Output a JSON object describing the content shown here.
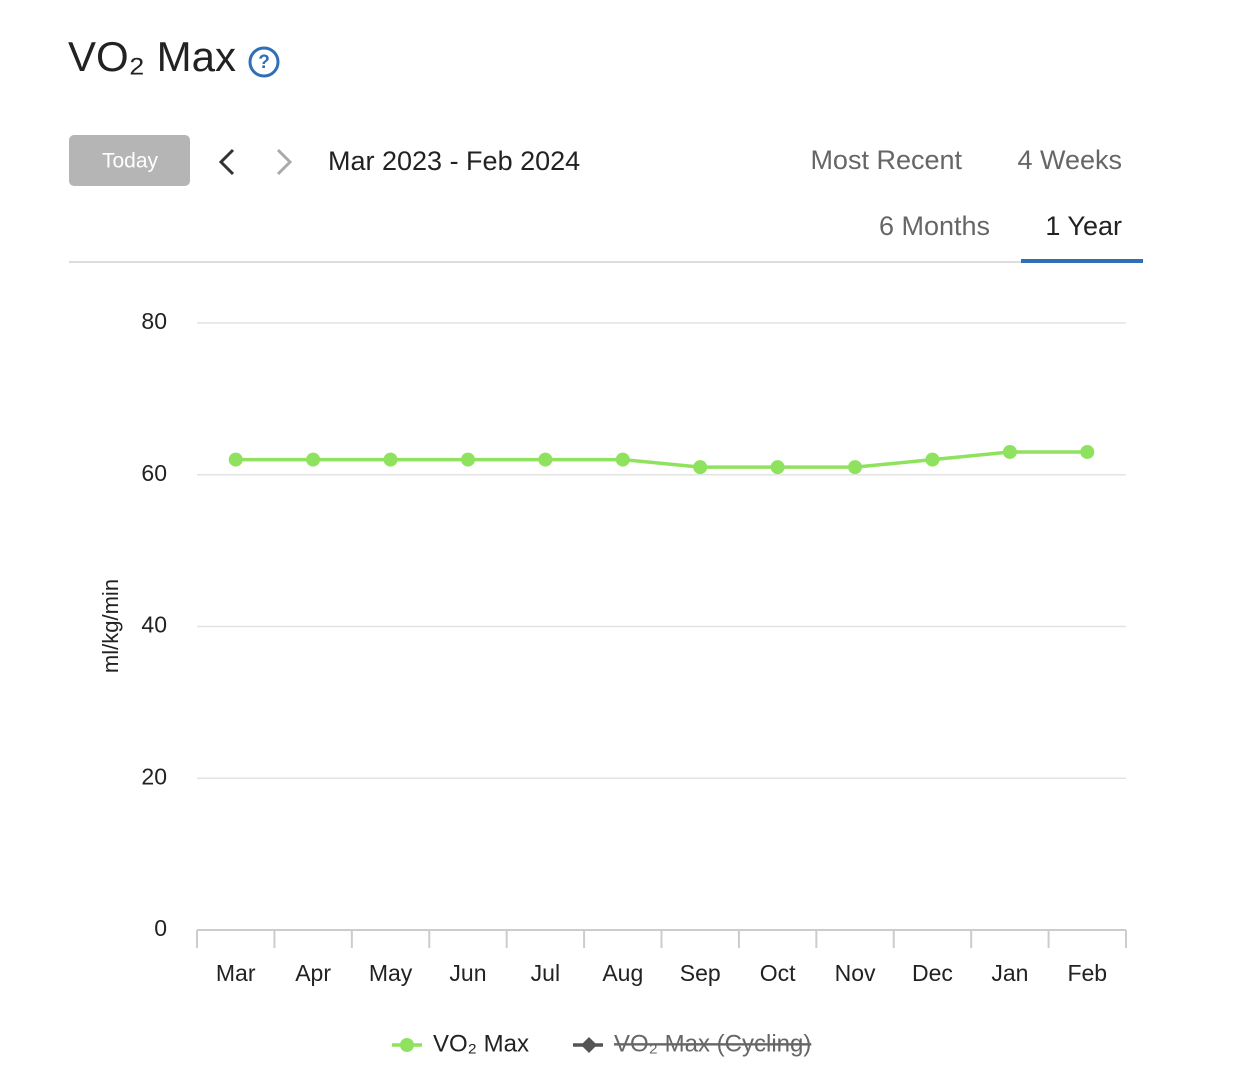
{
  "header": {
    "title": "VO₂ Max",
    "help": "?"
  },
  "controls": {
    "today": "Today",
    "range": "Mar 2023 - Feb 2024",
    "tabs": [
      "Most Recent",
      "4 Weeks",
      "6 Months",
      "1 Year"
    ]
  },
  "chart_data": {
    "type": "line",
    "y_label": "ml/kg/min",
    "categories": [
      "Mar",
      "Apr",
      "May",
      "Jun",
      "Jul",
      "Aug",
      "Sep",
      "Oct",
      "Nov",
      "Dec",
      "Jan",
      "Feb"
    ],
    "series": [
      {
        "name": "VO₂ Max",
        "color": "#8fe25e",
        "visible": true,
        "values": [
          62,
          62,
          62,
          62,
          62,
          62,
          61,
          61,
          61,
          62,
          63,
          63
        ]
      },
      {
        "name": "VO₂ Max (Cycling)",
        "color": "#555555",
        "visible": false,
        "values": [
          null,
          null,
          null,
          null,
          null,
          null,
          null,
          null,
          null,
          null,
          null,
          null
        ]
      }
    ],
    "ylim": [
      0,
      80
    ],
    "yticks": [
      0,
      20,
      40,
      60,
      80
    ],
    "grid": true
  }
}
